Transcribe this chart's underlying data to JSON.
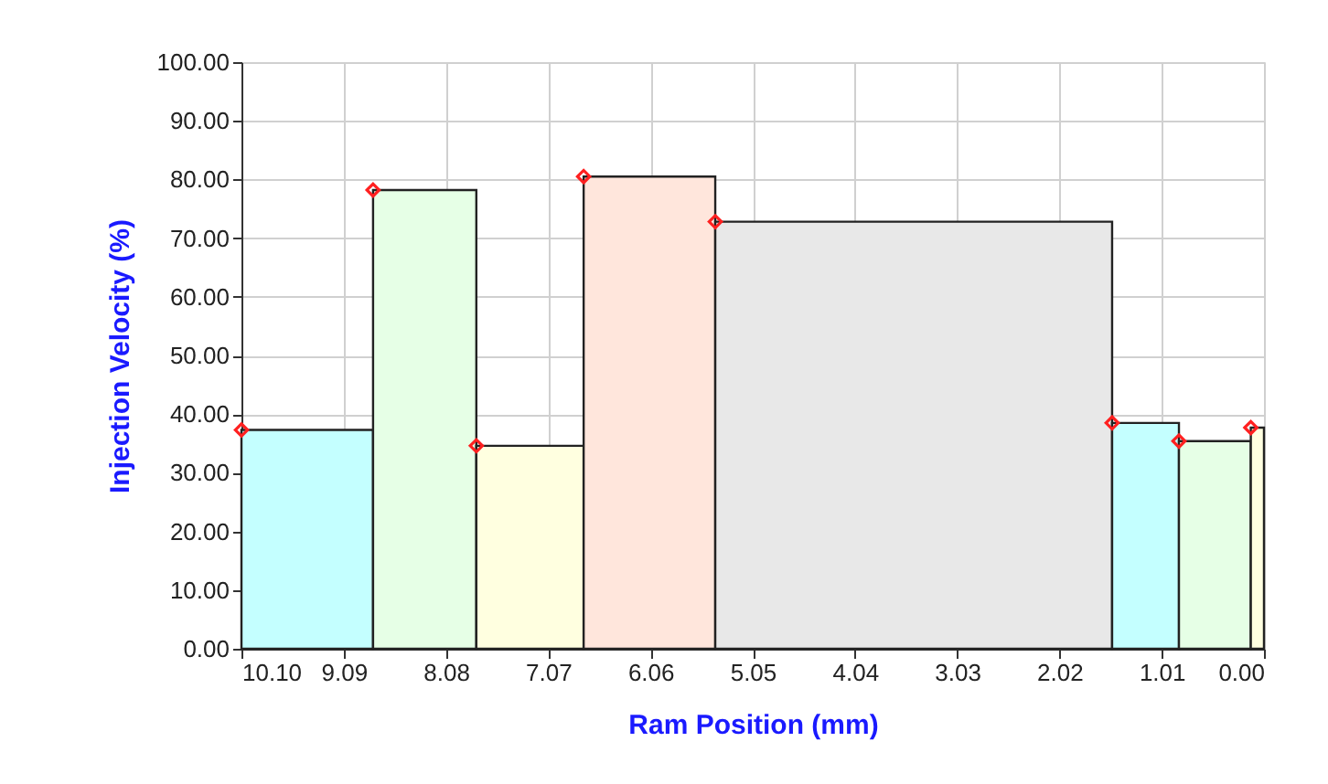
{
  "chart_data": {
    "type": "histogram",
    "xlabel": "Ram Position (mm)",
    "ylabel": "Injection Velocity (%)",
    "bins": [
      10.1,
      8.8,
      7.78,
      6.72,
      5.42,
      1.5,
      0.84,
      0.13,
      0.0
    ],
    "values": [
      37.3,
      78.2,
      34.6,
      80.5,
      72.8,
      38.5,
      35.4,
      37.7
    ],
    "colors": [
      "#c4ffff",
      "#e6ffe6",
      "#ffffe0",
      "#ffe6dc",
      "#e8e8e8",
      "#c4ffff",
      "#e6ffe6",
      "#ffffe0"
    ],
    "series": [
      {
        "type": "scatter",
        "marker": "diamond",
        "color": "#ff2020",
        "x": [
          10.1,
          8.8,
          7.78,
          6.72,
          5.42,
          1.5,
          0.84,
          0.13
        ],
        "values": [
          37.3,
          78.2,
          34.6,
          80.5,
          72.8,
          38.5,
          35.4,
          37.7
        ]
      }
    ],
    "xlim": [
      10.1,
      0.0
    ],
    "xticks": [
      {
        "value": 10.1,
        "label": "10.10"
      },
      9.09,
      8.08,
      7.07,
      6.06,
      5.05,
      4.04,
      3.03,
      2.02,
      1.01,
      {
        "value": 0.0,
        "label": "0.00"
      }
    ],
    "ylim": [
      0,
      100
    ],
    "yticks": [
      {
        "value": 0,
        "label": "0.00"
      },
      {
        "value": 10,
        "label": "10.00"
      },
      {
        "value": 20,
        "label": "20.00"
      },
      {
        "value": 30,
        "label": "30.00"
      },
      {
        "value": 40,
        "label": "40.00"
      },
      {
        "value": 50,
        "label": "50.00"
      },
      {
        "value": 60,
        "label": "60.00"
      },
      {
        "value": 70,
        "label": "70.00"
      },
      {
        "value": 80,
        "label": "80.00"
      },
      {
        "value": 90,
        "label": "90.00"
      },
      {
        "value": 100,
        "label": "100.00"
      }
    ],
    "grid": true
  }
}
